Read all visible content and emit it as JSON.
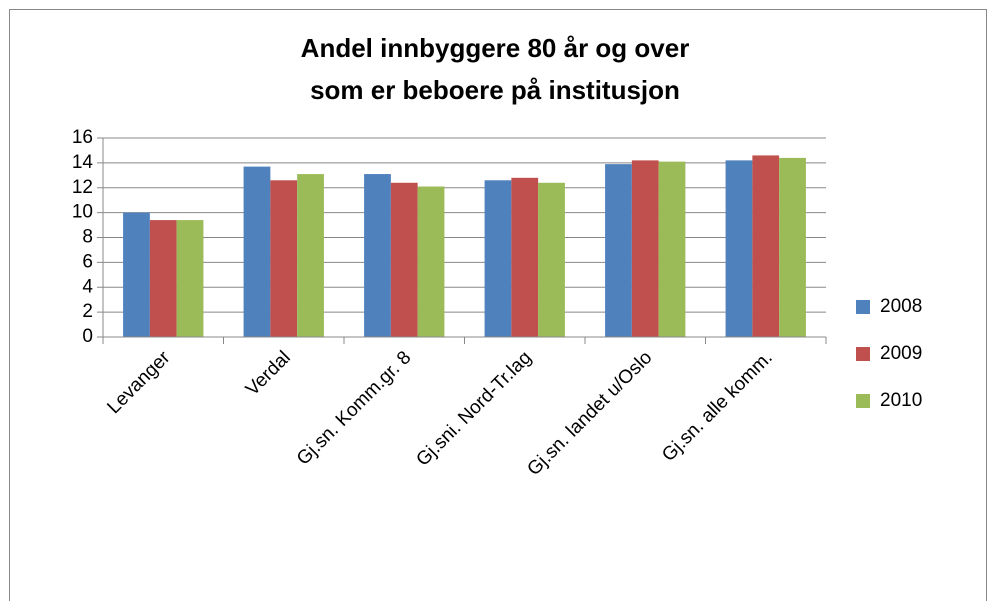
{
  "chart_data": {
    "type": "bar",
    "title": [
      "Andel innbyggere 80 år og over",
      "som er beboere på institusjon"
    ],
    "categories": [
      "Levanger",
      "Verdal",
      "Gj.sn. Komm.gr. 8",
      "Gj.sni. Nord-Tr.lag",
      "Gj.sn. landet u/Oslo",
      "Gj.sn. alle komm."
    ],
    "series": [
      {
        "name": "2008",
        "color": "#4f81bd",
        "values": [
          10,
          13.7,
          13.1,
          12.6,
          13.9,
          14.2
        ]
      },
      {
        "name": "2009",
        "color": "#c0504d",
        "values": [
          9.4,
          12.6,
          12.4,
          12.8,
          14.2,
          14.6
        ]
      },
      {
        "name": "2010",
        "color": "#9bbb59",
        "values": [
          9.4,
          13.1,
          12.1,
          12.4,
          14.1,
          14.4
        ]
      }
    ],
    "ylim": [
      0,
      16
    ],
    "yticks": [
      0,
      2,
      4,
      6,
      8,
      10,
      12,
      14,
      16
    ],
    "grid": true,
    "legend": "right"
  }
}
